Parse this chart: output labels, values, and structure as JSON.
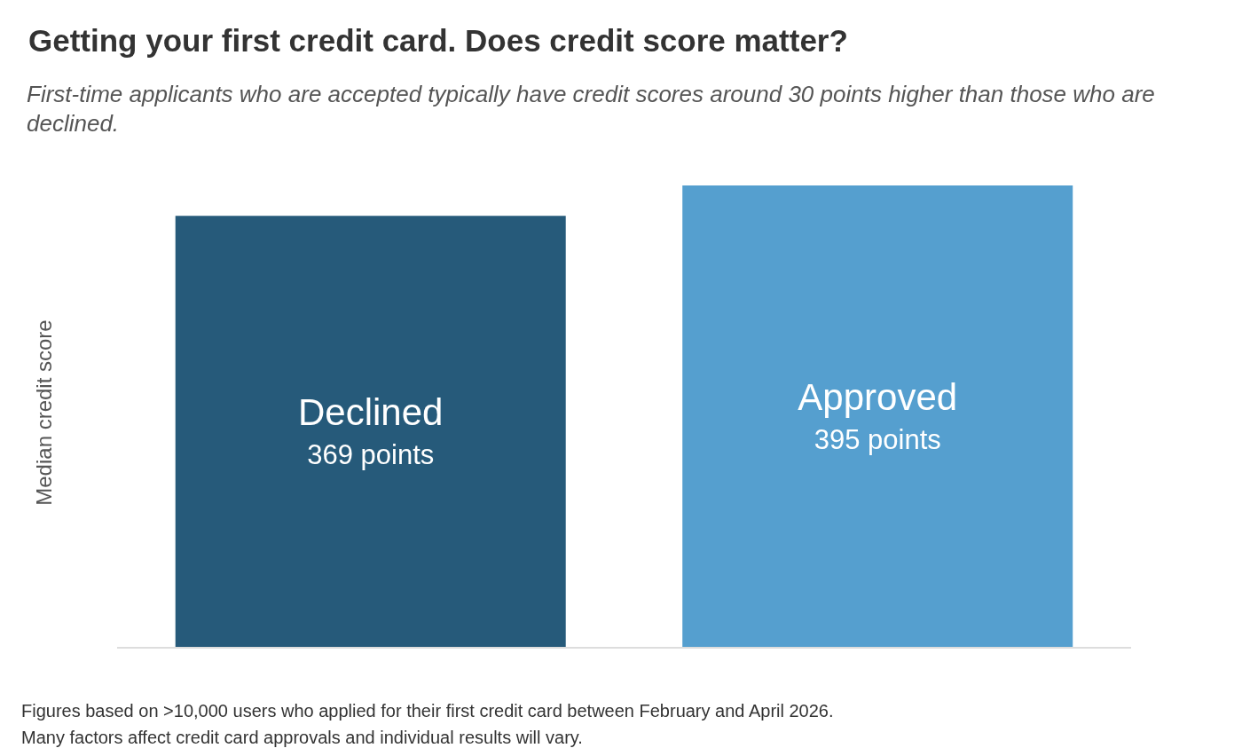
{
  "chart_data": {
    "type": "bar",
    "title": "Getting your first credit card. Does credit score matter?",
    "subtitle": "First-time applicants who are accepted typically have credit scores around 30 points higher than those who are declined.",
    "ylabel": "Median credit score",
    "categories": [
      "Declined",
      "Approved"
    ],
    "values": [
      369,
      395
    ],
    "colors": [
      "#265a7a",
      "#559fcf"
    ],
    "value_labels": [
      "369 points",
      "395 points"
    ],
    "annotations": [
      "Figures based on >10,000 users who applied for their first credit card between February and April 2026.",
      "Many factors affect credit card approvals and individual results will vary."
    ]
  }
}
